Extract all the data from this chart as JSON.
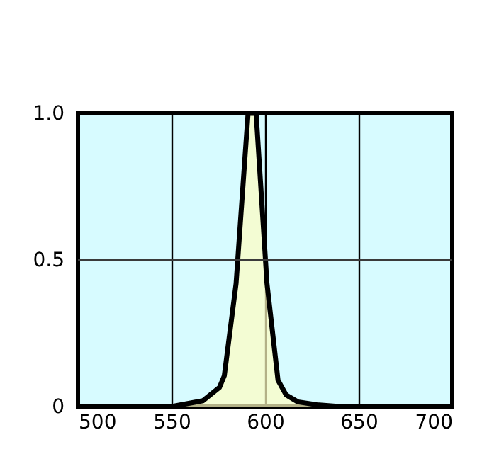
{
  "chart_data": {
    "type": "area",
    "x": [
      550,
      556.6,
      566.8,
      575.6,
      578.2,
      584.5,
      590.9,
      595.2,
      601,
      606.9,
      611.2,
      617.5,
      627.7,
      640
    ],
    "series": [
      {
        "color": "#fffcc0",
        "values": [
          0,
          0.008,
          0.02,
          0.065,
          0.105,
          0.42,
          1.0,
          1.0,
          0.42,
          0.09,
          0.04,
          0.016,
          0.006,
          0
        ]
      }
    ],
    "xlim": [
      500,
      700
    ],
    "xticks": [
      500,
      550,
      600,
      650,
      700
    ],
    "ylim": [
      0,
      1
    ],
    "yticks": [
      0,
      0.5,
      {
        "value": 1,
        "label": "1.0"
      }
    ],
    "ref_lines": [
      {
        "axis": "y",
        "value": 0.5,
        "color": "#3a3a3a"
      }
    ],
    "grid": "x",
    "marker": "none",
    "line_style": "solid"
  }
}
